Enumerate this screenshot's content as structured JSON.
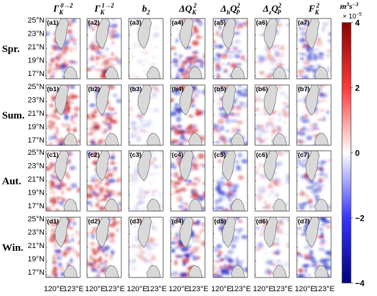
{
  "column_headers": [
    {
      "main": "Γ",
      "sub": "K",
      "sup": "0→2"
    },
    {
      "main": "Γ",
      "sub": "K",
      "sup": "1→2"
    },
    {
      "main": "b",
      "sub": "2",
      "sup": ""
    },
    {
      "main": "ΔQ",
      "sub": "K",
      "sup": "2"
    },
    {
      "main": "Δ",
      "sub": "h",
      "main2": "Q",
      "sub2": "P",
      "sup": "2"
    },
    {
      "main": "Δ",
      "sub": "z",
      "main2": "Q",
      "sub2": "P",
      "sup": "2"
    },
    {
      "main": "F",
      "sub": "K",
      "sup": "2"
    }
  ],
  "row_labels": [
    "Spr.",
    "Sum.",
    "Aut.",
    "Win."
  ],
  "panel_labels": [
    [
      "(a1)",
      "(a2)",
      "(a3)",
      "(a4)",
      "(a5)",
      "(a6)",
      "(a7)"
    ],
    [
      "(b1)",
      "(b2)",
      "(b3)",
      "(b4)",
      "(b5)",
      "(b6)",
      "(b7)"
    ],
    [
      "(c1)",
      "(c2)",
      "(c3)",
      "(c4)",
      "(c5)",
      "(c6)",
      "(c7)"
    ],
    [
      "(d1)",
      "(d2)",
      "(d3)",
      "(d4)",
      "(d5)",
      "(d6)",
      "(d7)"
    ]
  ],
  "lat_ticks": [
    "25°N",
    "23°N",
    "21°N",
    "19°N",
    "17°N"
  ],
  "lon_ticks": [
    "120°E",
    "123°E"
  ],
  "colorbar": {
    "units_main": "m",
    "units_sup1": "3",
    "units_mid": "s",
    "units_sup2": "−3",
    "scale_text": "× 10",
    "scale_exp": "−5",
    "ticks": [
      "4",
      "2",
      "0",
      "−2",
      "−4"
    ],
    "min": -4,
    "max": 4,
    "colors": [
      "#00007a",
      "#3535ff",
      "#ffffff",
      "#ff3a3a",
      "#8a0000"
    ]
  },
  "colors": {
    "land": "#d9d9d9",
    "positive": "#c81818",
    "negative": "#1f2fc8",
    "frame": "#333333"
  },
  "intensity": [
    [
      0.75,
      0.75,
      0.15,
      0.8,
      0.65,
      0.4,
      0.7
    ],
    [
      0.8,
      0.75,
      0.25,
      0.85,
      0.7,
      0.45,
      0.6
    ],
    [
      0.7,
      0.8,
      0.25,
      0.8,
      0.75,
      0.35,
      0.65
    ],
    [
      0.75,
      0.8,
      0.25,
      0.9,
      0.8,
      0.4,
      0.85
    ]
  ],
  "bias": [
    [
      0.45,
      0.5,
      0.0,
      0.0,
      -0.45,
      -0.05,
      -0.55
    ],
    [
      0.45,
      0.45,
      -0.1,
      0.0,
      -0.4,
      -0.05,
      -0.55
    ],
    [
      0.5,
      0.6,
      -0.25,
      0.0,
      -0.5,
      -0.1,
      -0.6
    ],
    [
      0.5,
      0.55,
      0.15,
      0.0,
      -0.5,
      -0.1,
      -0.7
    ]
  ]
}
